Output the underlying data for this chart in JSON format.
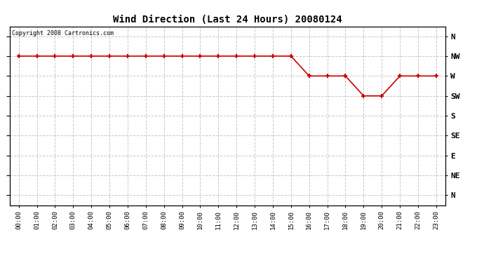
{
  "title": "Wind Direction (Last 24 Hours) 20080124",
  "copyright_text": "Copyright 2008 Cartronics.com",
  "background_color": "#ffffff",
  "plot_bg_color": "#ffffff",
  "grid_color": "#c8c8c8",
  "line_color": "#cc0000",
  "marker_color": "#cc0000",
  "y_labels": [
    "N",
    "NW",
    "W",
    "SW",
    "S",
    "SE",
    "E",
    "NE",
    "N"
  ],
  "x_labels": [
    "00:00",
    "01:00",
    "02:00",
    "03:00",
    "04:00",
    "05:00",
    "06:00",
    "07:00",
    "08:00",
    "09:00",
    "10:00",
    "11:00",
    "12:00",
    "13:00",
    "14:00",
    "15:00",
    "16:00",
    "17:00",
    "18:00",
    "19:00",
    "20:00",
    "21:00",
    "22:00",
    "23:00"
  ],
  "data_hours": [
    0,
    1,
    2,
    3,
    4,
    5,
    6,
    7,
    8,
    9,
    10,
    11,
    12,
    13,
    14,
    15,
    16,
    17,
    18,
    19,
    20,
    21,
    22,
    23
  ],
  "data_direction_values": [
    7,
    7,
    7,
    7,
    7,
    7,
    7,
    7,
    7,
    7,
    7,
    7,
    7,
    7,
    7,
    7,
    6,
    6,
    6,
    5,
    5,
    6,
    6,
    6
  ],
  "figwidth": 6.9,
  "figheight": 3.75,
  "dpi": 100
}
